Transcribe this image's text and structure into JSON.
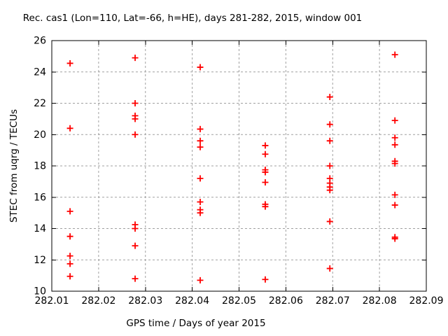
{
  "chart_data": {
    "type": "scatter",
    "title": "Rec. cas1 (Lon=110, Lat=-66, h=HE), days 281-282, 2015, window 001",
    "xlabel": "GPS time / Days of year 2015",
    "ylabel": "STEC from uqrg / TECUs",
    "xlim": [
      282.01,
      282.09
    ],
    "ylim": [
      10,
      26
    ],
    "xticks": [
      282.01,
      282.02,
      282.03,
      282.04,
      282.05,
      282.06,
      282.07,
      282.08,
      282.09
    ],
    "xtick_labels": [
      "282.01",
      "282.02",
      "282.03",
      "282.04",
      "282.05",
      "282.06",
      "282.07",
      "282.08",
      "282.09"
    ],
    "yticks": [
      10,
      12,
      14,
      16,
      18,
      20,
      22,
      24,
      26
    ],
    "ytick_labels": [
      "10",
      "12",
      "14",
      "16",
      "18",
      "20",
      "22",
      "24",
      "26"
    ],
    "grid": true,
    "legend": false,
    "marker": {
      "shape": "plus",
      "color": "#ff0000"
    },
    "colors": {
      "axis": "#000000",
      "grid": "#a0a0a0",
      "background": "#ffffff"
    },
    "points": [
      [
        282.0139,
        24.55
      ],
      [
        282.0139,
        20.4
      ],
      [
        282.0139,
        15.1
      ],
      [
        282.0139,
        13.5
      ],
      [
        282.0139,
        12.25
      ],
      [
        282.0139,
        11.75
      ],
      [
        282.0139,
        10.95
      ],
      [
        282.0278,
        24.9
      ],
      [
        282.0278,
        22.0
      ],
      [
        282.0278,
        21.2
      ],
      [
        282.0278,
        21.0
      ],
      [
        282.0278,
        20.0
      ],
      [
        282.0278,
        14.25
      ],
      [
        282.0278,
        14.0
      ],
      [
        282.0278,
        12.9
      ],
      [
        282.0278,
        10.8
      ],
      [
        282.0417,
        24.3
      ],
      [
        282.0417,
        20.35
      ],
      [
        282.0417,
        19.6
      ],
      [
        282.0417,
        19.2
      ],
      [
        282.0417,
        17.2
      ],
      [
        282.0417,
        15.7
      ],
      [
        282.0417,
        15.2
      ],
      [
        282.0417,
        15.0
      ],
      [
        282.0417,
        10.7
      ],
      [
        282.0556,
        19.3
      ],
      [
        282.0556,
        18.75
      ],
      [
        282.0556,
        17.75
      ],
      [
        282.0556,
        17.6
      ],
      [
        282.0556,
        16.95
      ],
      [
        282.0556,
        15.55
      ],
      [
        282.0556,
        15.4
      ],
      [
        282.0556,
        10.75
      ],
      [
        282.0694,
        22.4
      ],
      [
        282.0694,
        20.65
      ],
      [
        282.0694,
        19.6
      ],
      [
        282.0694,
        18.0
      ],
      [
        282.0694,
        17.2
      ],
      [
        282.0694,
        16.9
      ],
      [
        282.0694,
        16.65
      ],
      [
        282.0694,
        16.45
      ],
      [
        282.0694,
        14.45
      ],
      [
        282.0694,
        11.45
      ],
      [
        282.0833,
        25.1
      ],
      [
        282.0833,
        20.9
      ],
      [
        282.0833,
        19.8
      ],
      [
        282.0833,
        19.35
      ],
      [
        282.0833,
        18.3
      ],
      [
        282.0833,
        18.15
      ],
      [
        282.0833,
        16.15
      ],
      [
        282.0833,
        15.5
      ],
      [
        282.0833,
        13.45
      ],
      [
        282.0833,
        13.35
      ]
    ]
  }
}
